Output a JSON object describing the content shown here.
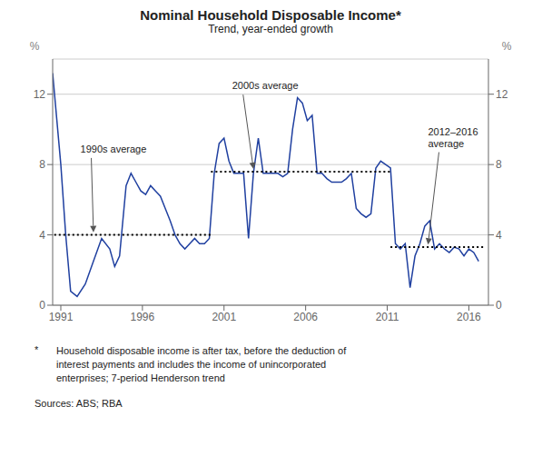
{
  "chart_data": {
    "type": "line",
    "title": "Nominal Household Disposable Income*",
    "subtitle": "Trend, year-ended growth",
    "y_label": "%",
    "y2_label": "%",
    "xlim": [
      1990.5,
      2017.2
    ],
    "xticks": [
      1991,
      1996,
      2001,
      2006,
      2011,
      2016
    ],
    "ylim": [
      0,
      14
    ],
    "yticks": [
      0,
      4,
      8,
      12
    ],
    "y2lim": [
      0,
      14
    ],
    "y2ticks": [
      0,
      4,
      8,
      12
    ],
    "grid": true,
    "color": "#2040a0",
    "x": [
      1990.5,
      1991.0,
      1991.3,
      1991.6,
      1992.0,
      1992.5,
      1993.0,
      1993.5,
      1994.0,
      1994.3,
      1994.6,
      1995.0,
      1995.3,
      1995.6,
      1995.9,
      1996.2,
      1996.5,
      1996.8,
      1997.1,
      1997.4,
      1997.7,
      1998.0,
      1998.3,
      1998.6,
      1998.9,
      1999.2,
      1999.5,
      1999.8,
      2000.1,
      2000.4,
      2000.7,
      2001.0,
      2001.3,
      2001.6,
      2001.9,
      2002.2,
      2002.5,
      2002.8,
      2003.1,
      2003.4,
      2003.7,
      2004.0,
      2004.3,
      2004.6,
      2004.9,
      2005.2,
      2005.5,
      2005.8,
      2006.1,
      2006.4,
      2006.7,
      2007.0,
      2007.3,
      2007.6,
      2007.9,
      2008.2,
      2008.5,
      2008.8,
      2009.1,
      2009.4,
      2009.7,
      2010.0,
      2010.3,
      2010.6,
      2010.9,
      2011.2,
      2011.5,
      2011.8,
      2012.1,
      2012.4,
      2012.7,
      2013.0,
      2013.3,
      2013.6,
      2013.9,
      2014.2,
      2014.5,
      2014.8,
      2015.1,
      2015.4,
      2015.7,
      2016.0,
      2016.3,
      2016.6
    ],
    "values": [
      13.2,
      8.0,
      4.0,
      0.8,
      0.5,
      1.2,
      2.5,
      3.8,
      3.2,
      2.2,
      2.8,
      6.8,
      7.5,
      7.0,
      6.5,
      6.3,
      6.8,
      6.5,
      6.2,
      5.5,
      4.8,
      4.0,
      3.5,
      3.2,
      3.5,
      3.8,
      3.5,
      3.5,
      3.8,
      7.5,
      9.2,
      9.5,
      8.2,
      7.5,
      7.5,
      7.5,
      3.8,
      7.5,
      9.5,
      7.5,
      7.5,
      7.5,
      7.5,
      7.3,
      7.5,
      10.0,
      11.8,
      11.5,
      10.5,
      10.8,
      7.5,
      7.5,
      7.2,
      7.0,
      7.0,
      7.0,
      7.2,
      7.5,
      5.5,
      5.2,
      5.0,
      5.2,
      7.8,
      8.2,
      8.0,
      7.8,
      3.5,
      3.2,
      3.5,
      1.0,
      2.8,
      3.5,
      4.5,
      4.8,
      3.2,
      3.5,
      3.2,
      3.0,
      3.3,
      3.2,
      2.8,
      3.2,
      3.0,
      2.5
    ],
    "average_lines": [
      {
        "y": 4.0,
        "x_start": 1990.6,
        "x_end": 2000.2
      },
      {
        "y": 7.6,
        "x_start": 2000.2,
        "x_end": 2011.2
      },
      {
        "y": 3.3,
        "x_start": 2011.2,
        "x_end": 2017.0
      }
    ],
    "annotations": [
      {
        "text": "1990s average",
        "x": 1992.2,
        "y": 9.2,
        "arrow_x": 1993.0,
        "arrow_y": 4.15
      },
      {
        "text": "2000s average",
        "x": 2001.5,
        "y": 12.8,
        "arrow_x": 2002.8,
        "arrow_y": 7.75
      },
      {
        "text": "2012–2016\naverage",
        "x": 2013.5,
        "y": 10.2,
        "arrow_x": 2013.5,
        "arrow_y": 3.45
      }
    ],
    "footnote_marker": "*",
    "footnote": "Household disposable income is after tax, before the deduction of\ninterest payments and includes the income of unincorporated\nenterprises; 7-period Henderson trend",
    "sources": "Sources:  ABS; RBA"
  }
}
